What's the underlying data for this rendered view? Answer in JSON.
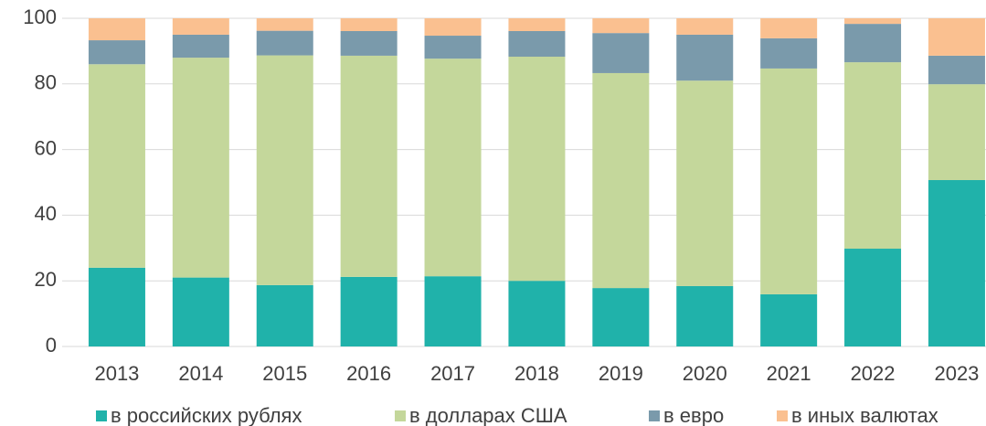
{
  "chart_data": {
    "type": "stacked_bar",
    "categories": [
      "2013",
      "2014",
      "2015",
      "2016",
      "2017",
      "2018",
      "2019",
      "2020",
      "2021",
      "2022",
      "2023"
    ],
    "series": [
      {
        "name": "в российских рублях",
        "color": "#20b2aa",
        "values": [
          24,
          21,
          18.7,
          21.2,
          21.4,
          20,
          17.8,
          18.4,
          15.9,
          29.8,
          50.7
        ]
      },
      {
        "name": "в долларах США",
        "color": "#c4d79b",
        "values": [
          62,
          67,
          70,
          67.4,
          66.3,
          68.3,
          65.5,
          62.6,
          68.8,
          56.8,
          29.2
        ]
      },
      {
        "name": "в евро",
        "color": "#7a9aab",
        "values": [
          7.3,
          7,
          7.5,
          7.5,
          7,
          7.8,
          12.2,
          14,
          9.2,
          11.7,
          8.7
        ]
      },
      {
        "name": "в иных валютах",
        "color": "#fac090",
        "values": [
          6.7,
          5,
          3.8,
          3.9,
          5.3,
          3.9,
          4.5,
          5,
          6.1,
          1.7,
          11.4
        ]
      }
    ],
    "ylim": [
      0,
      100
    ],
    "yticks": [
      0,
      20,
      40,
      60,
      80,
      100
    ],
    "grid": true,
    "legend": "bottom"
  }
}
